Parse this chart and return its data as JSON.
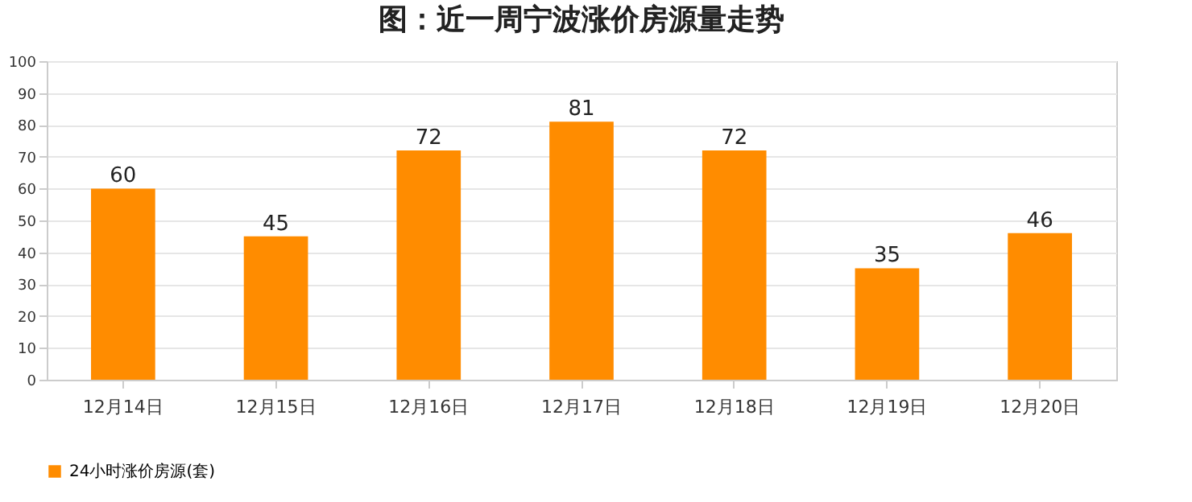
{
  "chart_data": {
    "type": "bar",
    "title": "图：近一周宁波涨价房源量走势",
    "categories": [
      "12月14日",
      "12月15日",
      "12月16日",
      "12月17日",
      "12月18日",
      "12月19日",
      "12月20日"
    ],
    "series": [
      {
        "name": "24小时涨价房源(套)",
        "color": "#ff8c00",
        "values": [
          60,
          45,
          72,
          81,
          72,
          35,
          46
        ]
      }
    ],
    "ylim": [
      0,
      100
    ],
    "yticks": [
      0,
      10,
      20,
      30,
      40,
      50,
      60,
      70,
      80,
      90,
      100
    ],
    "grid": "y",
    "legend": "bottom",
    "data_labels": true
  }
}
